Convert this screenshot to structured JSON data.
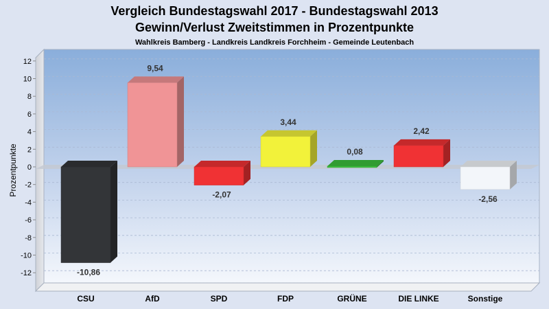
{
  "chart_data": {
    "type": "bar",
    "title": "Vergleich Bundestagswahl 2017 - Bundestagswahl 2013",
    "title_line2": "Gewinn/Verlust Zweitstimmen in Prozentpunkte",
    "subtitle": "Wahlkreis Bamberg - Landkreis Landkreis Forchheim - Gemeinde Leutenbach",
    "ylabel": "Prozentpunkte",
    "xlabel": "",
    "ylim": [
      -13,
      13
    ],
    "yticks": [
      12,
      10,
      8,
      6,
      4,
      2,
      0,
      -2,
      -4,
      -6,
      -8,
      -10,
      -12
    ],
    "categories": [
      "CSU",
      "AfD",
      "SPD",
      "FDP",
      "GRÜNE",
      "DIE LINKE",
      "Sonstige"
    ],
    "values": [
      -10.86,
      9.54,
      -2.07,
      3.44,
      0.08,
      2.42,
      -2.56
    ],
    "value_labels": [
      "-10,86",
      "9,54",
      "-2,07",
      "3,44",
      "0,08",
      "2,42",
      "-2,56"
    ],
    "colors": [
      "#333538",
      "#f09496",
      "#f03234",
      "#f2f23a",
      "#3cbe3c",
      "#f03234",
      "#f3f6fa"
    ],
    "grid": true
  }
}
